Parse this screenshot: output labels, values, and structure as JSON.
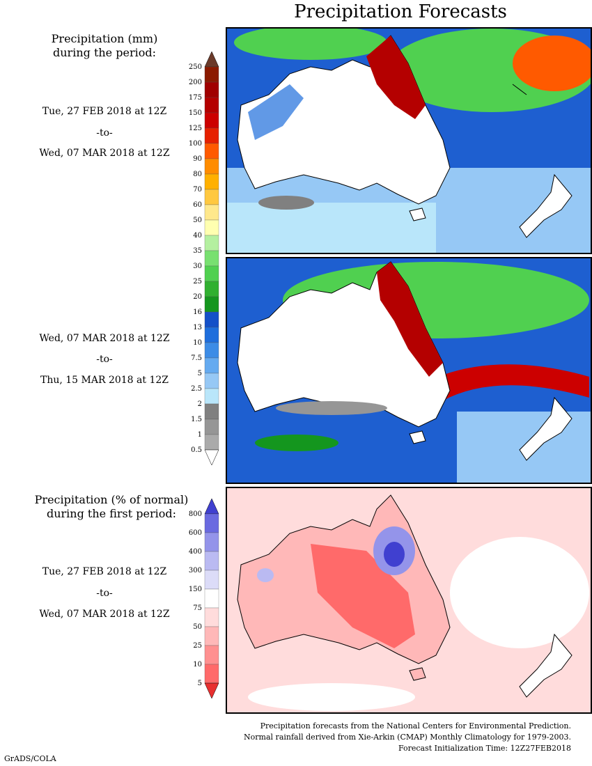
{
  "title": "Precipitation Forecasts",
  "colors": {
    "ocean_mm": "#1e5fd0",
    "ocean_light": "#9ad0f5",
    "land": "#ffffff",
    "heavy": "#b40000",
    "green": "#3cb44b",
    "gray": "#8c8c8c",
    "pct_red": "#f26060",
    "pct_blue": "#5050dd"
  },
  "section1": {
    "header_line1": "Precipitation (mm)",
    "header_line2": "during the period:",
    "period_a_start": "Tue, 27 FEB 2018 at 12Z",
    "period_a_to": "-to-",
    "period_a_end": "Wed, 07 MAR 2018 at 12Z",
    "period_b_start": "Wed, 07 MAR 2018 at 12Z",
    "period_b_to": "-to-",
    "period_b_end": "Thu, 15 MAR 2018 at 12Z"
  },
  "mm_legend": {
    "ticks": [
      "250",
      "200",
      "175",
      "150",
      "125",
      "100",
      "90",
      "80",
      "70",
      "60",
      "50",
      "40",
      "35",
      "30",
      "25",
      "20",
      "16",
      "13",
      "10",
      "7.5",
      "5",
      "2.5",
      "2",
      "1.5",
      "1",
      "0.5"
    ],
    "colors": [
      "#6b3a2a",
      "#8b1a00",
      "#a00000",
      "#b40000",
      "#cc0000",
      "#e62000",
      "#ff5a00",
      "#ff8c00",
      "#ffb000",
      "#ffc840",
      "#ffe88c",
      "#ffffb0",
      "#b4f0a0",
      "#78e070",
      "#50d050",
      "#30b030",
      "#14961e",
      "#1450c8",
      "#1e6edc",
      "#3c8ce6",
      "#64aaf0",
      "#96c8f5",
      "#b9e6fa",
      "#808080",
      "#969696",
      "#aaaaaa",
      "#c0c0c0"
    ]
  },
  "section2": {
    "header_line1": "Precipitation (% of normal)",
    "header_line2": "during the first period:",
    "period_start": "Tue, 27 FEB 2018 at 12Z",
    "period_to": "-to-",
    "period_end": "Wed, 07 MAR 2018 at 12Z"
  },
  "pct_legend": {
    "ticks": [
      "800",
      "600",
      "400",
      "300",
      "150",
      "75",
      "50",
      "25",
      "10",
      "5"
    ],
    "colors": [
      "#4040d0",
      "#6a6ae0",
      "#9494ea",
      "#babaf2",
      "#dcdcf8",
      "#ffffff",
      "#ffdcdc",
      "#ffb8b8",
      "#ff9090",
      "#ff6a6a",
      "#e83030"
    ]
  },
  "footer": {
    "line1": "Precipitation forecasts from the National Centers for Environmental Prediction.",
    "line2": "Normal rainfall derived from Xie-Arkin (CMAP) Monthly Climatology for 1979-2003.",
    "line3": "Forecast Initialization Time: 12Z27FEB2018"
  },
  "credit": "GrADS/COLA"
}
